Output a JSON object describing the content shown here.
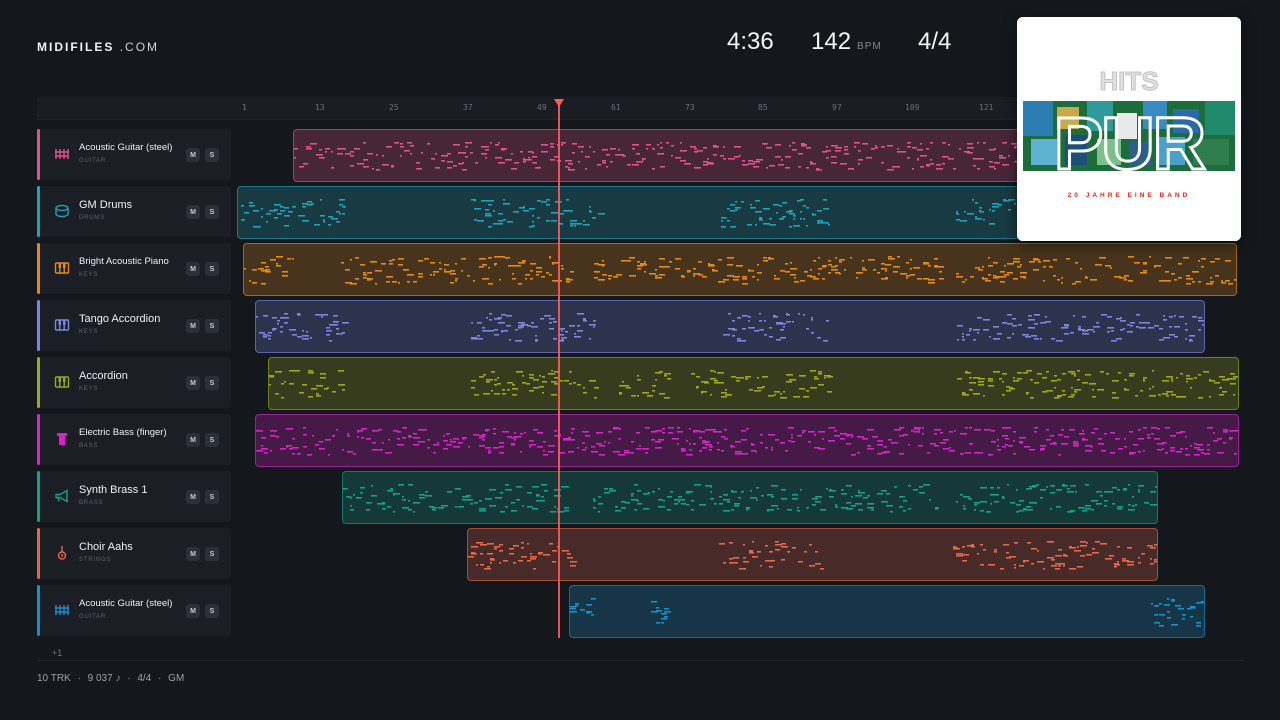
{
  "brand": {
    "name": "MIDIFILES",
    "suffix": ".COM"
  },
  "stats": {
    "duration": "4:36",
    "tempo": "142",
    "tempo_unit": "BPM",
    "time_signature": "4/4"
  },
  "ruler": {
    "ticks": [
      "1",
      "13",
      "25",
      "37",
      "49",
      "61",
      "73",
      "85",
      "97",
      "109",
      "121"
    ]
  },
  "tracks": [
    {
      "name": "Acoustic Guitar (steel)",
      "category": "GUITAR",
      "icon": "guitar-fretboard-icon",
      "color": "#e0528d",
      "mute": "M",
      "solo": "S"
    },
    {
      "name": "GM Drums",
      "category": "DRUMS",
      "icon": "drum-icon",
      "color": "#1fa3b8",
      "mute": "M",
      "solo": "S"
    },
    {
      "name": "Bright Acoustic Piano",
      "category": "KEYS",
      "icon": "piano-keys-icon",
      "color": "#e48a1a",
      "mute": "M",
      "solo": "S"
    },
    {
      "name": "Tango Accordion",
      "category": "KEYS",
      "icon": "piano-keys-icon",
      "color": "#7b86e0",
      "mute": "M",
      "solo": "S"
    },
    {
      "name": "Accordion",
      "category": "KEYS",
      "icon": "piano-keys-icon",
      "color": "#9aaa1e",
      "mute": "M",
      "solo": "S"
    },
    {
      "name": "Electric Bass (finger)",
      "category": "BASS",
      "icon": "bass-icon",
      "color": "#d624c6",
      "mute": "M",
      "solo": "S"
    },
    {
      "name": "Synth Brass 1",
      "category": "BRASS",
      "icon": "horn-icon",
      "color": "#16a08a",
      "mute": "M",
      "solo": "S"
    },
    {
      "name": "Choir Aahs",
      "category": "STRINGS",
      "icon": "violin-icon",
      "color": "#e4684a",
      "mute": "M",
      "solo": "S"
    },
    {
      "name": "Acoustic Guitar (steel)",
      "category": "GUITAR",
      "icon": "guitar-fretboard-icon",
      "color": "#1a8fc8",
      "mute": "M",
      "solo": "S"
    }
  ],
  "more_tracks": "+1",
  "footer": {
    "tracks": "10 TRK",
    "notes": "9 037 ♪",
    "time_signature": "4/4",
    "standard": "GM",
    "sep": "·"
  },
  "album": {
    "top_text": "HITS",
    "logo_text": "PUR",
    "bottom_text": "20 JAHRE EINE BAND",
    "accent": "#d9281e"
  },
  "colors": {
    "background": "#14171c",
    "playhead": "#ff5a5a"
  }
}
